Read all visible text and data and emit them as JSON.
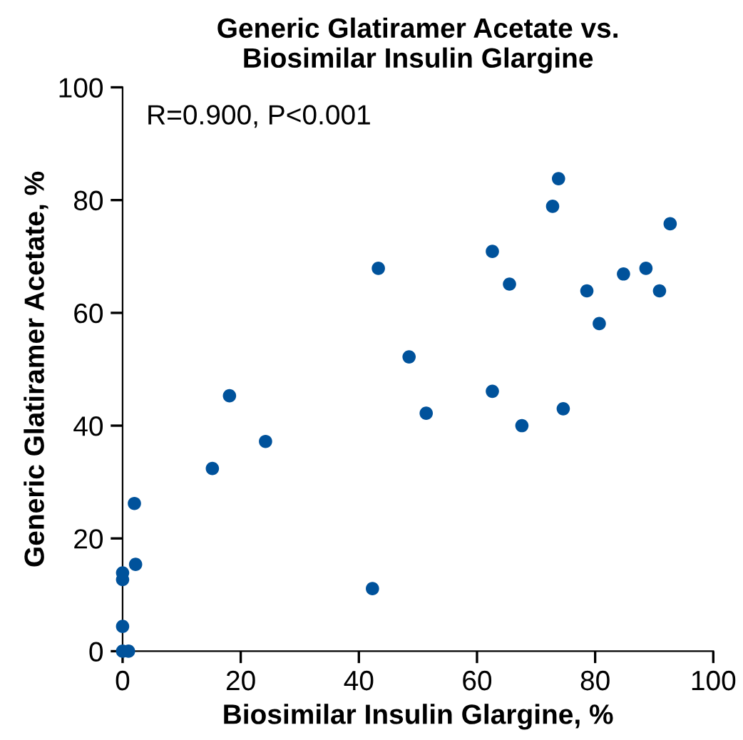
{
  "chart_data": {
    "type": "scatter",
    "title": "Generic Glatiramer Acetate vs.\nBiosimilar Insulin Glargine",
    "xlabel": "Biosimilar Insulin Glargine, %",
    "ylabel": "Generic Glatiramer Acetate, %",
    "annotations": [
      "R=0.900, P<0.001"
    ],
    "series": [
      {
        "color": "#00529b",
        "x": [
          0,
          1,
          0,
          0,
          0,
          2.2,
          2,
          15.2,
          18.1,
          24.2,
          42.3,
          43.3,
          48.5,
          51.4,
          62.6,
          62.6,
          65.5,
          67.6,
          72.8,
          73.8,
          74.6,
          78.6,
          80.7,
          84.8,
          88.6,
          90.9,
          92.7
        ],
        "values": [
          0,
          0,
          4.4,
          12.7,
          13.9,
          15.4,
          26.2,
          32.4,
          45.3,
          37.2,
          11.1,
          67.9,
          52.2,
          42.2,
          70.9,
          46.1,
          65.1,
          40,
          78.9,
          83.8,
          43,
          63.9,
          58.1,
          66.9,
          67.9,
          63.9,
          75.8
        ]
      }
    ],
    "xlim": [
      0,
      100
    ],
    "ylim": [
      0,
      100
    ],
    "xticks": [
      0,
      20,
      40,
      60,
      80,
      100
    ],
    "yticks": [
      0,
      20,
      40,
      60,
      80,
      100
    ],
    "marker": "circle",
    "grid": false,
    "legend": false
  }
}
